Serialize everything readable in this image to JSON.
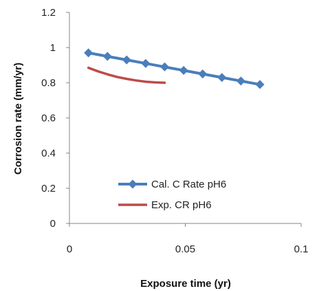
{
  "chart_data": {
    "type": "line",
    "title": "",
    "xlabel": "Exposure time (yr)",
    "ylabel": "Corrosion rate (mm/yr)",
    "xlim": [
      0,
      0.1
    ],
    "ylim": [
      0,
      1.2
    ],
    "x_ticks": [
      0,
      0.05,
      0.1
    ],
    "x_tick_labels": [
      "0",
      "0.05",
      "0.1"
    ],
    "y_ticks": [
      0,
      0.2,
      0.4,
      0.6,
      0.8,
      1,
      1.2
    ],
    "y_tick_labels": [
      "0",
      "0.2",
      "0.4",
      "0.6",
      "0.8",
      "1",
      "1.2"
    ],
    "grid": false,
    "legend_position": "lower-left",
    "series": [
      {
        "name": "Cal. C  Rate pH6",
        "color": "#4a7ebb",
        "marker": "diamond",
        "x": [
          0.0082,
          0.0164,
          0.0247,
          0.0329,
          0.0411,
          0.0493,
          0.0575,
          0.0658,
          0.074,
          0.0822
        ],
        "y": [
          0.97,
          0.95,
          0.93,
          0.91,
          0.89,
          0.87,
          0.85,
          0.83,
          0.81,
          0.79
        ]
      },
      {
        "name": "Exp. CR pH6",
        "color": "#be4b48",
        "marker": "none",
        "x": [
          0.0082,
          0.0123,
          0.0164,
          0.0205,
          0.0247,
          0.0288,
          0.0329,
          0.037,
          0.0411
        ],
        "y": [
          0.885,
          0.865,
          0.848,
          0.833,
          0.822,
          0.813,
          0.806,
          0.802,
          0.8
        ]
      }
    ]
  }
}
